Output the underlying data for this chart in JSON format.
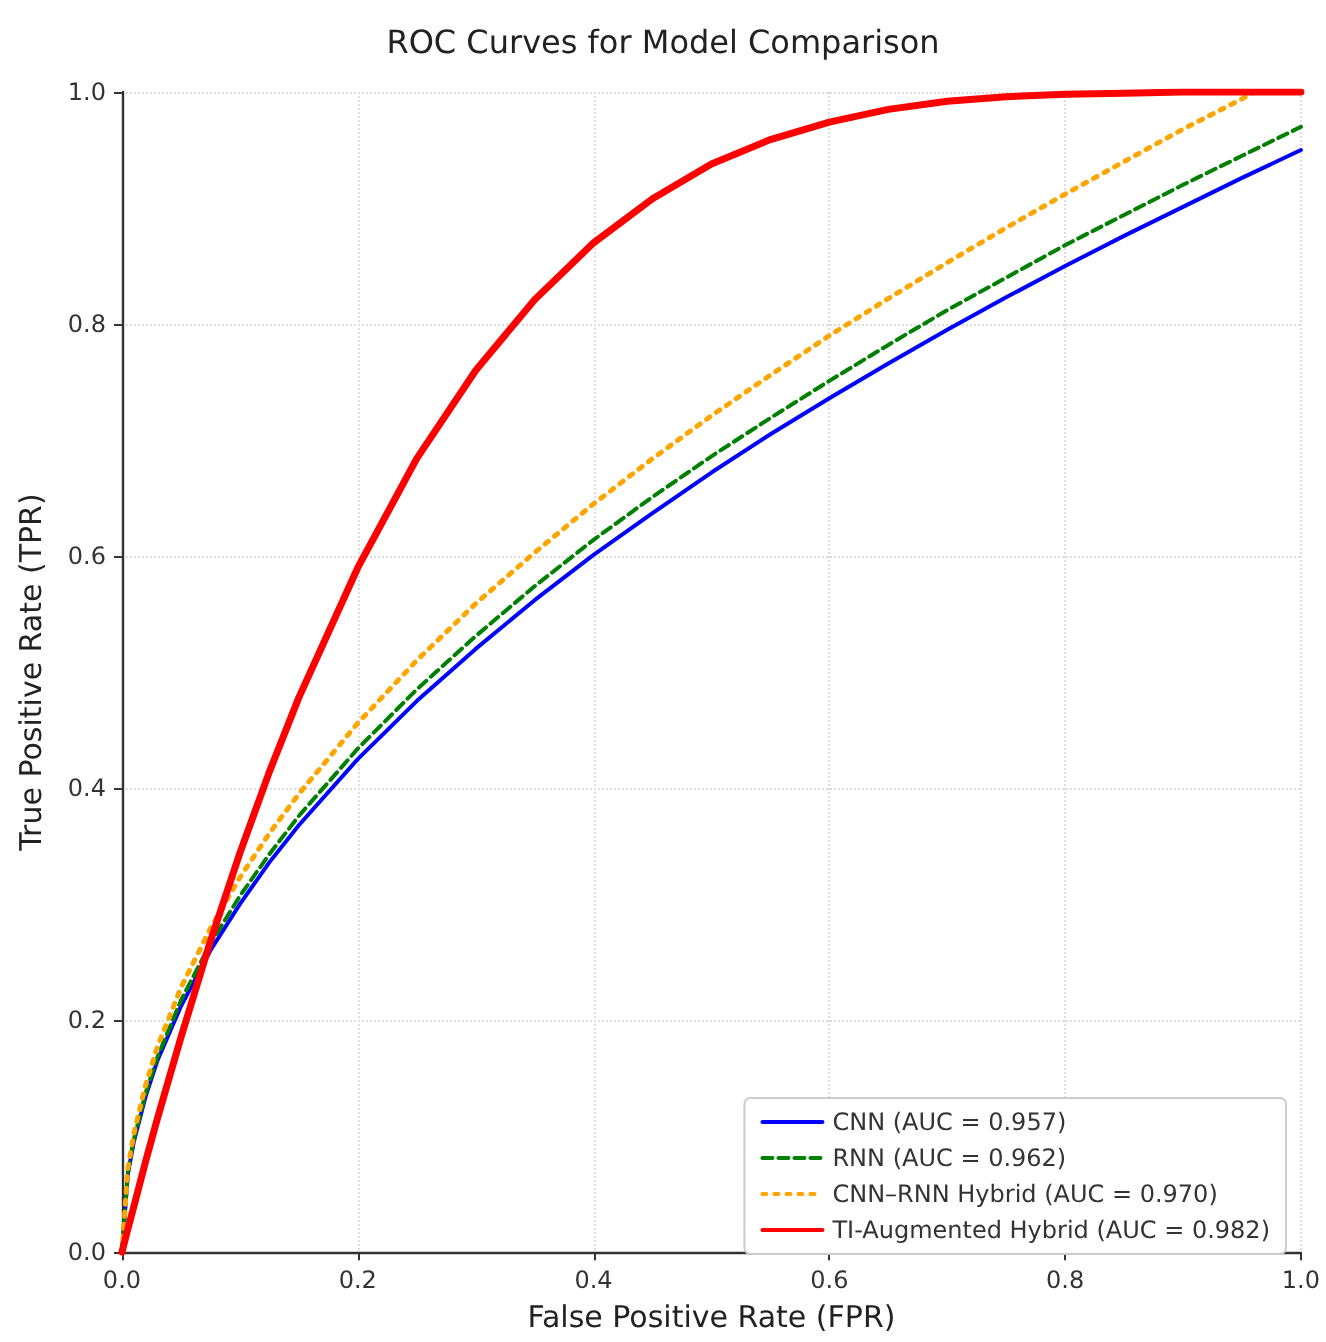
{
  "chart_data": {
    "type": "line",
    "title": "ROC Curves for Model Comparison",
    "xlabel": "False Positive Rate (FPR)",
    "ylabel": "True Positive Rate (TPR)",
    "x": [
      0,
      0.005,
      0.01,
      0.02,
      0.03,
      0.05,
      0.075,
      0.1,
      0.125,
      0.15,
      0.2,
      0.25,
      0.3,
      0.35,
      0.4,
      0.45,
      0.5,
      0.55,
      0.6,
      0.65,
      0.7,
      0.75,
      0.8,
      0.85,
      0.9,
      0.95,
      1
    ],
    "series": [
      {
        "name": "CNN (AUC = 0.957)",
        "color": "#0000ff",
        "line_style": "solid",
        "values": [
          0,
          0.067,
          0.095,
          0.134,
          0.165,
          0.212,
          0.26,
          0.3,
          0.336,
          0.368,
          0.425,
          0.475,
          0.52,
          0.562,
          0.601,
          0.637,
          0.672,
          0.705,
          0.736,
          0.766,
          0.795,
          0.823,
          0.85,
          0.876,
          0.901,
          0.926,
          0.95
        ]
      },
      {
        "name": "RNN (AUC = 0.962)",
        "color": "#008000",
        "line_style": "dashed",
        "values": [
          0,
          0.069,
          0.097,
          0.137,
          0.168,
          0.217,
          0.266,
          0.307,
          0.343,
          0.376,
          0.434,
          0.485,
          0.531,
          0.574,
          0.614,
          0.651,
          0.686,
          0.719,
          0.751,
          0.782,
          0.812,
          0.84,
          0.868,
          0.894,
          0.92,
          0.945,
          0.97
        ]
      },
      {
        "name": "CNN–RNN Hybrid (AUC = 0.970)",
        "color": "#ffa500",
        "line_style": "dotted",
        "x": [
          0,
          0.005,
          0.01,
          0.02,
          0.03,
          0.05,
          0.075,
          0.1,
          0.125,
          0.15,
          0.2,
          0.25,
          0.3,
          0.35,
          0.4,
          0.45,
          0.5,
          0.55,
          0.6,
          0.65,
          0.7,
          0.75,
          0.8,
          0.85,
          0.9,
          0.95,
          0.96
        ],
        "values": [
          0,
          0.072,
          0.102,
          0.144,
          0.177,
          0.228,
          0.279,
          0.323,
          0.361,
          0.395,
          0.456,
          0.51,
          0.559,
          0.603,
          0.645,
          0.684,
          0.721,
          0.756,
          0.79,
          0.822,
          0.853,
          0.883,
          0.912,
          0.94,
          0.968,
          0.994,
          1.0
        ]
      },
      {
        "name": "TI-Augmented Hybrid (AUC = 0.982)",
        "color": "#ff0000",
        "line_style": "solid",
        "values": [
          0,
          0.02,
          0.039,
          0.078,
          0.115,
          0.185,
          0.268,
          0.344,
          0.414,
          0.478,
          0.59,
          0.684,
          0.76,
          0.821,
          0.87,
          0.908,
          0.938,
          0.959,
          0.974,
          0.985,
          0.992,
          0.996,
          0.998,
          0.999,
          1.0,
          1.0,
          1.0
        ]
      }
    ],
    "xlim": [
      0,
      1
    ],
    "xticks": [
      {
        "value": 0,
        "label": "0.0"
      },
      {
        "value": 0.2,
        "label": "0.2"
      },
      {
        "value": 0.4,
        "label": "0.4"
      },
      {
        "value": 0.6,
        "label": "0.6"
      },
      {
        "value": 0.8,
        "label": "0.8"
      },
      {
        "value": 1,
        "label": "1.0"
      }
    ],
    "ylim": [
      0,
      1
    ],
    "yticks": [
      {
        "value": 0,
        "label": "0.0"
      },
      {
        "value": 0.2,
        "label": "0.2"
      },
      {
        "value": 0.4,
        "label": "0.4"
      },
      {
        "value": 0.6,
        "label": "0.6"
      },
      {
        "value": 0.8,
        "label": "0.8"
      },
      {
        "value": 1,
        "label": "1.0"
      }
    ],
    "grid": true,
    "legend": "bottom right",
    "marker": "none"
  }
}
